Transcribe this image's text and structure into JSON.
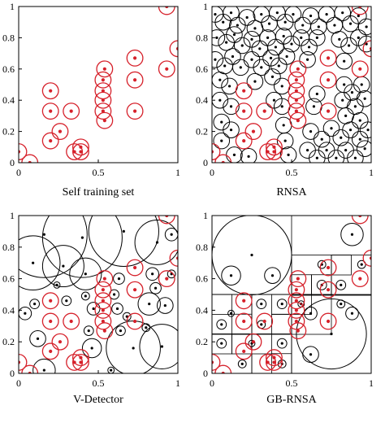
{
  "figure": {
    "colors": {
      "self": "#d6202a",
      "detector": "#000000",
      "frame": "#000000"
    }
  },
  "chart_data": [
    {
      "type": "scatter",
      "title": "Self training set",
      "xlim": [
        0,
        1
      ],
      "ylim": [
        0,
        1
      ],
      "x_ticks": [
        "0",
        "0.5",
        "1"
      ],
      "y_ticks": [
        "0",
        "0.2",
        "0.4",
        "0.6",
        "0.8",
        "1"
      ],
      "grid": false,
      "self_radius": 0.05,
      "self_points": [
        [
          0.0,
          0.07
        ],
        [
          0.07,
          0.0
        ],
        [
          0.2,
          0.46
        ],
        [
          0.2,
          0.33
        ],
        [
          0.2,
          0.14
        ],
        [
          0.26,
          0.2
        ],
        [
          0.33,
          0.33
        ],
        [
          0.35,
          0.07
        ],
        [
          0.39,
          0.1
        ],
        [
          0.39,
          0.07
        ],
        [
          0.53,
          0.53
        ],
        [
          0.53,
          0.46
        ],
        [
          0.53,
          0.4
        ],
        [
          0.53,
          0.33
        ],
        [
          0.54,
          0.6
        ],
        [
          0.54,
          0.27
        ],
        [
          0.73,
          0.67
        ],
        [
          0.73,
          0.53
        ],
        [
          0.73,
          0.33
        ],
        [
          0.93,
          0.6
        ],
        [
          0.93,
          1.0
        ],
        [
          1.0,
          0.73
        ]
      ],
      "detectors": [],
      "boxes": []
    },
    {
      "type": "scatter",
      "title": "RNSA",
      "xlim": [
        0,
        1
      ],
      "ylim": [
        0,
        1
      ],
      "x_ticks": [
        "0",
        "0.5",
        "1"
      ],
      "y_ticks": [
        "0",
        "0.2",
        "0.4",
        "0.6",
        "0.8",
        "1"
      ],
      "grid": false,
      "self_radius": 0.05,
      "self_points": [
        [
          0.0,
          0.07
        ],
        [
          0.07,
          0.0
        ],
        [
          0.2,
          0.46
        ],
        [
          0.2,
          0.33
        ],
        [
          0.2,
          0.14
        ],
        [
          0.26,
          0.2
        ],
        [
          0.33,
          0.33
        ],
        [
          0.35,
          0.07
        ],
        [
          0.39,
          0.1
        ],
        [
          0.39,
          0.07
        ],
        [
          0.53,
          0.53
        ],
        [
          0.53,
          0.46
        ],
        [
          0.53,
          0.4
        ],
        [
          0.53,
          0.33
        ],
        [
          0.54,
          0.6
        ],
        [
          0.54,
          0.27
        ],
        [
          0.73,
          0.67
        ],
        [
          0.73,
          0.53
        ],
        [
          0.73,
          0.33
        ],
        [
          0.93,
          0.6
        ],
        [
          0.93,
          1.0
        ],
        [
          1.0,
          0.73
        ]
      ],
      "detectors": [
        [
          0.02,
          0.95,
          0.05
        ],
        [
          0.07,
          0.9,
          0.05
        ],
        [
          0.12,
          0.96,
          0.05
        ],
        [
          0.16,
          0.88,
          0.05
        ],
        [
          0.22,
          0.93,
          0.05
        ],
        [
          0.27,
          0.86,
          0.05
        ],
        [
          0.31,
          0.95,
          0.05
        ],
        [
          0.36,
          0.89,
          0.05
        ],
        [
          0.41,
          0.96,
          0.05
        ],
        [
          0.46,
          0.9,
          0.05
        ],
        [
          0.51,
          0.95,
          0.05
        ],
        [
          0.57,
          0.88,
          0.05
        ],
        [
          0.62,
          0.94,
          0.05
        ],
        [
          0.67,
          0.87,
          0.05
        ],
        [
          0.72,
          0.95,
          0.05
        ],
        [
          0.77,
          0.88,
          0.05
        ],
        [
          0.82,
          0.96,
          0.05
        ],
        [
          0.87,
          0.89,
          0.05
        ],
        [
          0.92,
          0.94,
          0.05
        ],
        [
          0.97,
          0.87,
          0.05
        ],
        [
          0.03,
          0.8,
          0.05
        ],
        [
          0.09,
          0.77,
          0.05
        ],
        [
          0.14,
          0.82,
          0.05
        ],
        [
          0.19,
          0.75,
          0.05
        ],
        [
          0.25,
          0.79,
          0.05
        ],
        [
          0.3,
          0.73,
          0.05
        ],
        [
          0.35,
          0.8,
          0.05
        ],
        [
          0.4,
          0.74,
          0.05
        ],
        [
          0.45,
          0.81,
          0.05
        ],
        [
          0.5,
          0.76,
          0.05
        ],
        [
          0.56,
          0.8,
          0.05
        ],
        [
          0.61,
          0.74,
          0.05
        ],
        [
          0.66,
          0.8,
          0.05
        ],
        [
          0.8,
          0.79,
          0.05
        ],
        [
          0.86,
          0.75,
          0.05
        ],
        [
          0.92,
          0.8,
          0.05
        ],
        [
          0.97,
          0.76,
          0.05
        ],
        [
          0.02,
          0.66,
          0.05
        ],
        [
          0.08,
          0.62,
          0.05
        ],
        [
          0.13,
          0.68,
          0.05
        ],
        [
          0.18,
          0.61,
          0.05
        ],
        [
          0.25,
          0.66,
          0.05
        ],
        [
          0.31,
          0.61,
          0.05
        ],
        [
          0.37,
          0.67,
          0.05
        ],
        [
          0.42,
          0.62,
          0.05
        ],
        [
          0.47,
          0.68,
          0.05
        ],
        [
          0.6,
          0.66,
          0.05
        ],
        [
          0.83,
          0.65,
          0.05
        ],
        [
          0.05,
          0.53,
          0.05
        ],
        [
          0.11,
          0.49,
          0.05
        ],
        [
          0.27,
          0.52,
          0.05
        ],
        [
          0.38,
          0.55,
          0.05
        ],
        [
          0.44,
          0.49,
          0.05
        ],
        [
          0.05,
          0.4,
          0.05
        ],
        [
          0.12,
          0.36,
          0.05
        ],
        [
          0.39,
          0.4,
          0.05
        ],
        [
          0.44,
          0.36,
          0.05
        ],
        [
          0.06,
          0.26,
          0.05
        ],
        [
          0.12,
          0.21,
          0.05
        ],
        [
          0.45,
          0.24,
          0.05
        ],
        [
          0.06,
          0.14,
          0.05
        ],
        [
          0.46,
          0.14,
          0.05
        ],
        [
          0.14,
          0.05,
          0.05
        ],
        [
          0.23,
          0.04,
          0.05
        ],
        [
          0.48,
          0.05,
          0.05
        ],
        [
          0.83,
          0.5,
          0.05
        ],
        [
          0.88,
          0.45,
          0.05
        ],
        [
          0.94,
          0.5,
          0.05
        ],
        [
          0.82,
          0.4,
          0.05
        ],
        [
          0.9,
          0.36,
          0.05
        ],
        [
          0.96,
          0.41,
          0.05
        ],
        [
          0.84,
          0.3,
          0.05
        ],
        [
          0.93,
          0.27,
          0.05
        ],
        [
          0.62,
          0.2,
          0.05
        ],
        [
          0.69,
          0.15,
          0.05
        ],
        [
          0.75,
          0.22,
          0.05
        ],
        [
          0.81,
          0.16,
          0.05
        ],
        [
          0.87,
          0.21,
          0.05
        ],
        [
          0.93,
          0.15,
          0.05
        ],
        [
          0.98,
          0.21,
          0.05
        ],
        [
          0.6,
          0.08,
          0.05
        ],
        [
          0.66,
          0.03,
          0.05
        ],
        [
          0.72,
          0.08,
          0.05
        ],
        [
          0.78,
          0.03,
          0.05
        ],
        [
          0.84,
          0.08,
          0.05
        ],
        [
          0.9,
          0.03,
          0.05
        ],
        [
          0.96,
          0.09,
          0.05
        ],
        [
          0.64,
          0.36,
          0.05
        ],
        [
          0.66,
          0.44,
          0.05
        ]
      ],
      "boxes": []
    },
    {
      "type": "scatter",
      "title": "V-Detector",
      "xlim": [
        0,
        1
      ],
      "ylim": [
        0,
        1
      ],
      "x_ticks": [
        "0",
        "0.5",
        "1"
      ],
      "y_ticks": [
        "0",
        "0.2",
        "0.4",
        "0.6",
        "0.8",
        "1"
      ],
      "grid": false,
      "self_radius": 0.05,
      "self_points": [
        [
          0.0,
          0.07
        ],
        [
          0.07,
          0.0
        ],
        [
          0.2,
          0.46
        ],
        [
          0.2,
          0.33
        ],
        [
          0.2,
          0.14
        ],
        [
          0.26,
          0.2
        ],
        [
          0.33,
          0.33
        ],
        [
          0.35,
          0.07
        ],
        [
          0.39,
          0.1
        ],
        [
          0.39,
          0.07
        ],
        [
          0.53,
          0.53
        ],
        [
          0.53,
          0.46
        ],
        [
          0.53,
          0.4
        ],
        [
          0.53,
          0.33
        ],
        [
          0.54,
          0.6
        ],
        [
          0.54,
          0.27
        ],
        [
          0.73,
          0.67
        ],
        [
          0.73,
          0.53
        ],
        [
          0.73,
          0.33
        ],
        [
          0.93,
          0.6
        ],
        [
          0.93,
          1.0
        ],
        [
          1.0,
          0.73
        ]
      ],
      "detectors": [
        [
          0.16,
          0.88,
          0.27
        ],
        [
          0.4,
          0.86,
          0.25
        ],
        [
          0.66,
          0.9,
          0.22
        ],
        [
          0.87,
          0.83,
          0.14
        ],
        [
          0.09,
          0.7,
          0.17
        ],
        [
          0.28,
          0.68,
          0.13
        ],
        [
          0.42,
          0.63,
          0.1
        ],
        [
          0.72,
          0.16,
          0.17
        ],
        [
          0.9,
          0.17,
          0.14
        ],
        [
          0.16,
          0.02,
          0.07
        ],
        [
          0.82,
          0.44,
          0.07
        ],
        [
          0.46,
          0.16,
          0.06
        ],
        [
          0.12,
          0.22,
          0.05
        ],
        [
          0.92,
          0.43,
          0.05
        ],
        [
          0.96,
          0.88,
          0.04
        ],
        [
          0.84,
          0.63,
          0.04
        ],
        [
          0.04,
          0.38,
          0.04
        ],
        [
          0.47,
          0.41,
          0.04
        ],
        [
          0.63,
          0.6,
          0.035
        ],
        [
          0.62,
          0.41,
          0.035
        ],
        [
          0.86,
          0.54,
          0.035
        ],
        [
          0.64,
          0.27,
          0.03
        ],
        [
          0.3,
          0.46,
          0.03
        ],
        [
          0.44,
          0.27,
          0.03
        ],
        [
          0.6,
          0.5,
          0.03
        ],
        [
          0.1,
          0.44,
          0.03
        ],
        [
          0.42,
          0.49,
          0.025
        ],
        [
          0.68,
          0.36,
          0.025
        ],
        [
          0.8,
          0.29,
          0.025
        ],
        [
          0.96,
          0.63,
          0.025
        ],
        [
          0.58,
          0.02,
          0.02
        ],
        [
          0.24,
          0.56,
          0.02
        ]
      ],
      "boxes": []
    },
    {
      "type": "scatter",
      "title": "GB-RNSA",
      "xlim": [
        0,
        1
      ],
      "ylim": [
        0,
        1
      ],
      "x_ticks": [
        "0",
        "0.5",
        "1"
      ],
      "y_ticks": [
        "0",
        "0.2",
        "0.4",
        "0.6",
        "0.8",
        "1"
      ],
      "grid": false,
      "self_radius": 0.05,
      "self_points": [
        [
          0.0,
          0.07
        ],
        [
          0.07,
          0.0
        ],
        [
          0.2,
          0.46
        ],
        [
          0.2,
          0.33
        ],
        [
          0.2,
          0.14
        ],
        [
          0.26,
          0.2
        ],
        [
          0.33,
          0.33
        ],
        [
          0.35,
          0.07
        ],
        [
          0.39,
          0.1
        ],
        [
          0.39,
          0.07
        ],
        [
          0.53,
          0.53
        ],
        [
          0.53,
          0.46
        ],
        [
          0.53,
          0.4
        ],
        [
          0.53,
          0.33
        ],
        [
          0.54,
          0.6
        ],
        [
          0.54,
          0.27
        ],
        [
          0.73,
          0.67
        ],
        [
          0.73,
          0.53
        ],
        [
          0.73,
          0.33
        ],
        [
          0.93,
          0.6
        ],
        [
          0.93,
          1.0
        ],
        [
          1.0,
          0.73
        ]
      ],
      "detectors": [
        [
          0.25,
          0.75,
          0.25
        ],
        [
          0.75,
          0.25,
          0.22
        ],
        [
          0.88,
          0.88,
          0.07
        ],
        [
          0.12,
          0.62,
          0.06
        ],
        [
          0.38,
          0.62,
          0.05
        ],
        [
          0.62,
          0.12,
          0.05
        ],
        [
          0.62,
          0.38,
          0.04
        ],
        [
          0.88,
          0.38,
          0.04
        ],
        [
          0.44,
          0.44,
          0.03
        ],
        [
          0.31,
          0.44,
          0.03
        ],
        [
          0.31,
          0.31,
          0.025
        ],
        [
          0.06,
          0.31,
          0.03
        ],
        [
          0.06,
          0.19,
          0.03
        ],
        [
          0.44,
          0.19,
          0.03
        ],
        [
          0.44,
          0.06,
          0.025
        ],
        [
          0.19,
          0.06,
          0.025
        ],
        [
          0.69,
          0.56,
          0.03
        ],
        [
          0.81,
          0.56,
          0.03
        ],
        [
          0.81,
          0.44,
          0.025
        ],
        [
          0.94,
          0.69,
          0.025
        ],
        [
          0.69,
          0.69,
          0.025
        ],
        [
          0.12,
          0.38,
          0.02
        ],
        [
          0.25,
          0.19,
          0.02
        ],
        [
          0.56,
          0.44,
          0.02
        ]
      ],
      "boxes": [
        [
          0.0,
          0.0,
          0.5,
          0.5
        ],
        [
          0.5,
          0.0,
          0.5,
          0.5
        ],
        [
          0.5,
          0.5,
          0.5,
          0.5
        ],
        [
          0.0,
          0.0,
          0.25,
          0.25
        ],
        [
          0.25,
          0.0,
          0.25,
          0.25
        ],
        [
          0.0,
          0.25,
          0.25,
          0.25
        ],
        [
          0.25,
          0.25,
          0.25,
          0.25
        ],
        [
          0.5,
          0.25,
          0.25,
          0.25
        ],
        [
          0.5,
          0.5,
          0.25,
          0.25
        ],
        [
          0.75,
          0.5,
          0.25,
          0.25
        ],
        [
          0.125,
          0.125,
          0.125,
          0.125
        ],
        [
          0.125,
          0.25,
          0.125,
          0.125
        ],
        [
          0.25,
          0.125,
          0.125,
          0.125
        ],
        [
          0.375,
          0.25,
          0.125,
          0.125
        ],
        [
          0.375,
          0.375,
          0.125,
          0.125
        ],
        [
          0.5,
          0.375,
          0.125,
          0.125
        ],
        [
          0.5,
          0.5,
          0.125,
          0.125
        ],
        [
          0.625,
          0.5,
          0.125,
          0.125
        ],
        [
          0.75,
          0.625,
          0.125,
          0.125
        ],
        [
          0.0,
          0.375,
          0.125,
          0.125
        ],
        [
          0.0,
          0.125,
          0.125,
          0.125
        ],
        [
          0.375,
          0.0,
          0.125,
          0.125
        ]
      ]
    }
  ]
}
